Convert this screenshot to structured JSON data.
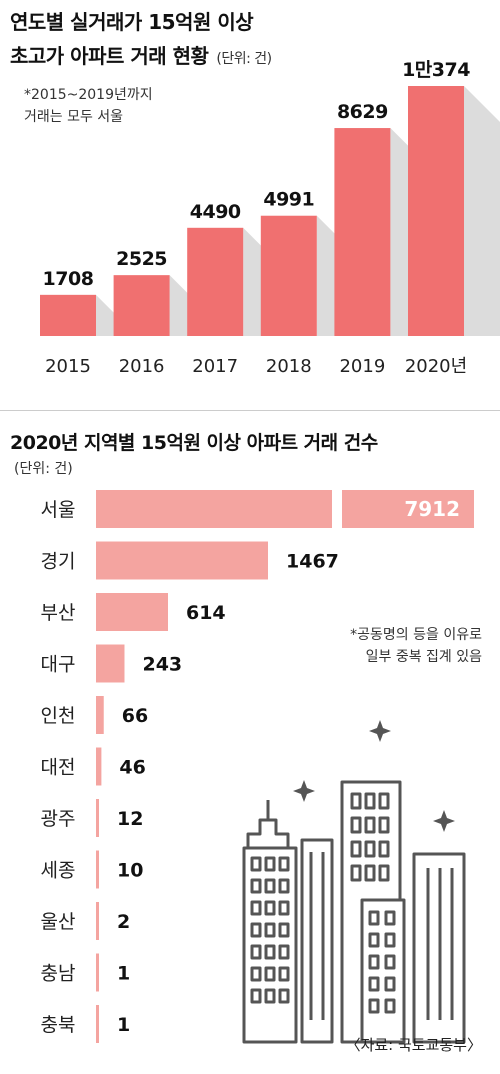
{
  "header": {
    "title_line1": "연도별 실거래가 15억원 이상",
    "title_line2": "초고가 아파트 거래 현황",
    "unit": "(단위: 건)",
    "note_line1": "*2015~2019년까지",
    "note_line2": "거래는 모두 서울"
  },
  "section2": {
    "title": "2020년 지역별 15억원 이상 아파트 거래 건수",
    "unit": "(단위: 건)",
    "note_line1": "*공동명의 등을 이유로",
    "note_line2": "일부 중복 집계 있음"
  },
  "source": "〈자료: 국토교통부〉",
  "colors": {
    "bar_year": "#f07070",
    "bar_region": "#f4a4a0",
    "shadow": "#dcdcdc",
    "building_stroke": "#555555"
  },
  "chart_data": [
    {
      "type": "bar",
      "categories": [
        "2015",
        "2016",
        "2017",
        "2018",
        "2019",
        "2020년"
      ],
      "values": [
        1708,
        2525,
        4490,
        4991,
        8629,
        10374
      ],
      "value_labels": [
        "1708",
        "2525",
        "4490",
        "4991",
        "8629",
        "1만374"
      ],
      "title": "연도별 실거래가 15억원 이상 초고가 아파트 거래 현황",
      "ylim": [
        0,
        10374
      ]
    },
    {
      "type": "bar",
      "orientation": "horizontal",
      "categories": [
        "서울",
        "경기",
        "부산",
        "대구",
        "인천",
        "대전",
        "광주",
        "세종",
        "울산",
        "충남",
        "충북"
      ],
      "values": [
        7912,
        1467,
        614,
        243,
        66,
        46,
        12,
        10,
        2,
        1,
        1
      ],
      "value_labels": [
        "7912",
        "1467",
        "614",
        "243",
        "66",
        "46",
        "12",
        "10",
        "2",
        "1",
        "1"
      ],
      "title": "2020년 지역별 15억원 이상 아파트 거래 건수",
      "axis_break": true
    }
  ]
}
